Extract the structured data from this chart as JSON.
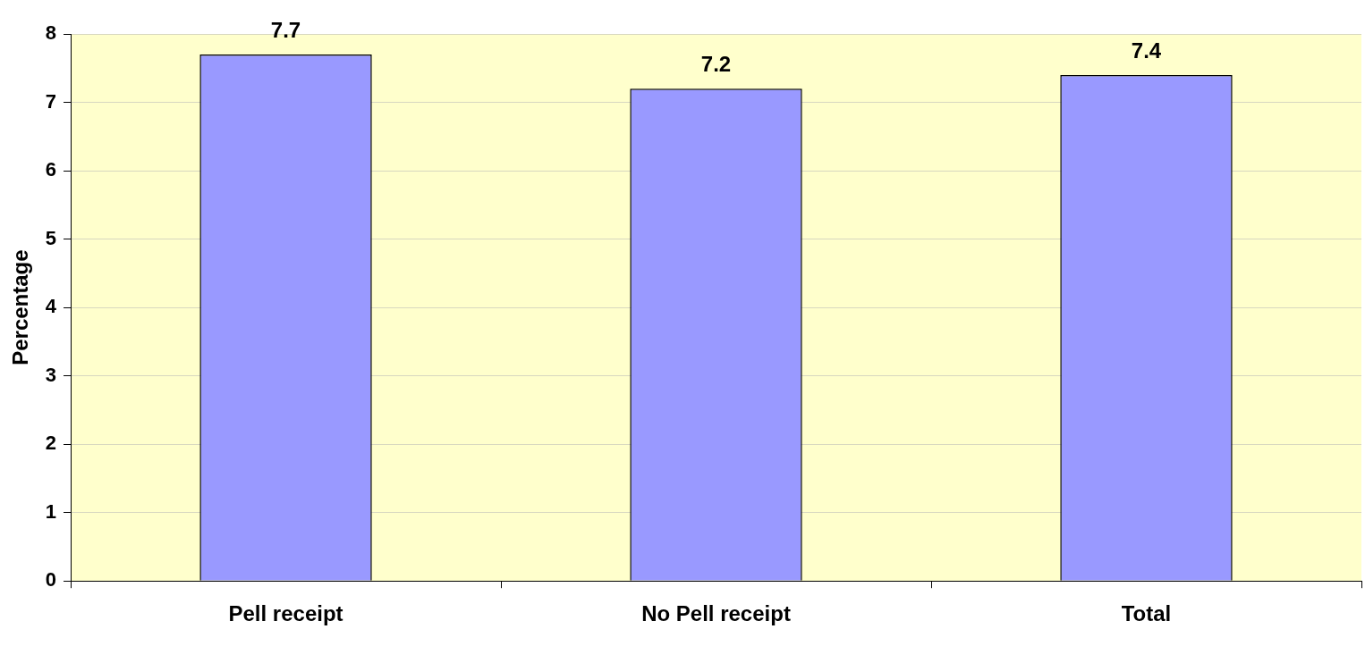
{
  "chart_data": {
    "type": "bar",
    "ylabel": "Percentage",
    "categories": [
      "Pell receipt",
      "No Pell receipt",
      "Total"
    ],
    "values": [
      7.7,
      7.2,
      7.4
    ],
    "color": "#9999ff",
    "ylim": [
      0,
      8
    ],
    "yticks": [
      0,
      1,
      2,
      3,
      4,
      5,
      6,
      7,
      8
    ],
    "grid": "y",
    "data_labels": true
  }
}
